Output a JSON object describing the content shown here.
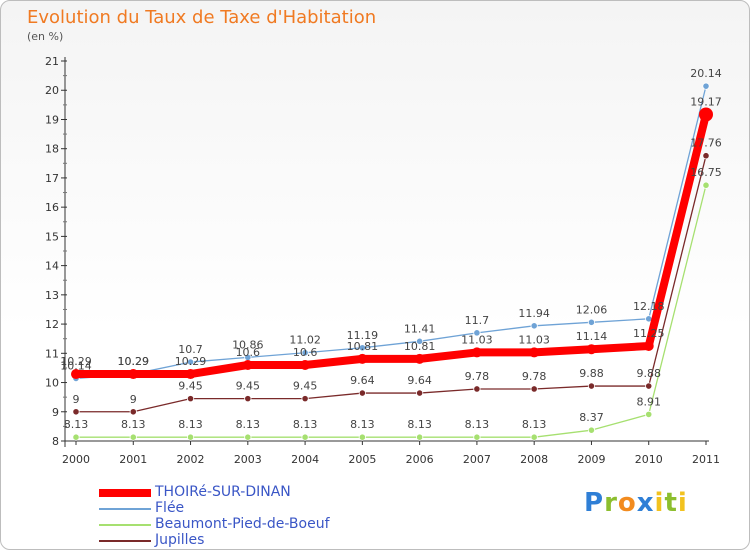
{
  "chart_data": {
    "type": "line",
    "title": "Evolution du Taux de Taxe d'Habitation",
    "subtitle": "(en %)",
    "xlabel": "",
    "ylabel": "",
    "x": [
      "2000",
      "2001",
      "2002",
      "2003",
      "2004",
      "2005",
      "2006",
      "2007",
      "2008",
      "2009",
      "2010",
      "2011"
    ],
    "y_ticks": [
      "8",
      "9",
      "10",
      "11",
      "12",
      "13",
      "14",
      "15",
      "16",
      "17",
      "18",
      "19",
      "20",
      "21"
    ],
    "ylim": [
      8,
      21
    ],
    "series": [
      {
        "name": "THOIRé-SUR-DINAN",
        "color": "#ff0000",
        "values": [
          10.29,
          10.29,
          10.29,
          10.6,
          10.6,
          10.81,
          10.81,
          11.03,
          11.03,
          11.14,
          11.25,
          19.17
        ],
        "labels": [
          "10.29",
          "10.29",
          "10.29",
          "10.6",
          "10.6",
          "10.81",
          "10.81",
          "11.03",
          "11.03",
          "11.14",
          "11.25",
          "19.17"
        ]
      },
      {
        "name": "Flée",
        "color": "#6fa3d6",
        "values": [
          10.14,
          10.29,
          10.7,
          10.86,
          11.02,
          11.19,
          11.41,
          11.7,
          11.94,
          12.06,
          12.18,
          20.14
        ],
        "labels": [
          "10.14",
          "10.29",
          "10.7",
          "10.86",
          "11.02",
          "11.19",
          "11.41",
          "11.7",
          "11.94",
          "12.06",
          "12.18",
          "20.14"
        ]
      },
      {
        "name": "Beaumont-Pied-de-Boeuf",
        "color": "#a6e070",
        "values": [
          8.13,
          8.13,
          8.13,
          8.13,
          8.13,
          8.13,
          8.13,
          8.13,
          8.13,
          8.37,
          8.91,
          16.75
        ],
        "labels": [
          "8.13",
          "8.13",
          "8.13",
          "8.13",
          "8.13",
          "8.13",
          "8.13",
          "8.13",
          "8.13",
          "8.37",
          "8.91",
          "16.75"
        ]
      },
      {
        "name": "Jupilles",
        "color": "#7a2a2a",
        "values": [
          9,
          9,
          9.45,
          9.45,
          9.45,
          9.64,
          9.64,
          9.78,
          9.78,
          9.88,
          9.88,
          17.76
        ],
        "labels": [
          "9",
          "9",
          "9.45",
          "9.45",
          "9.45",
          "9.64",
          "9.64",
          "9.78",
          "9.78",
          "9.88",
          "9.88",
          "17.76"
        ]
      }
    ],
    "legend_position": "bottom-left",
    "grid": false
  },
  "logo": {
    "text": "Proxiti",
    "letters": [
      "P",
      "r",
      "o",
      "x",
      "i",
      "t",
      "i"
    ]
  }
}
